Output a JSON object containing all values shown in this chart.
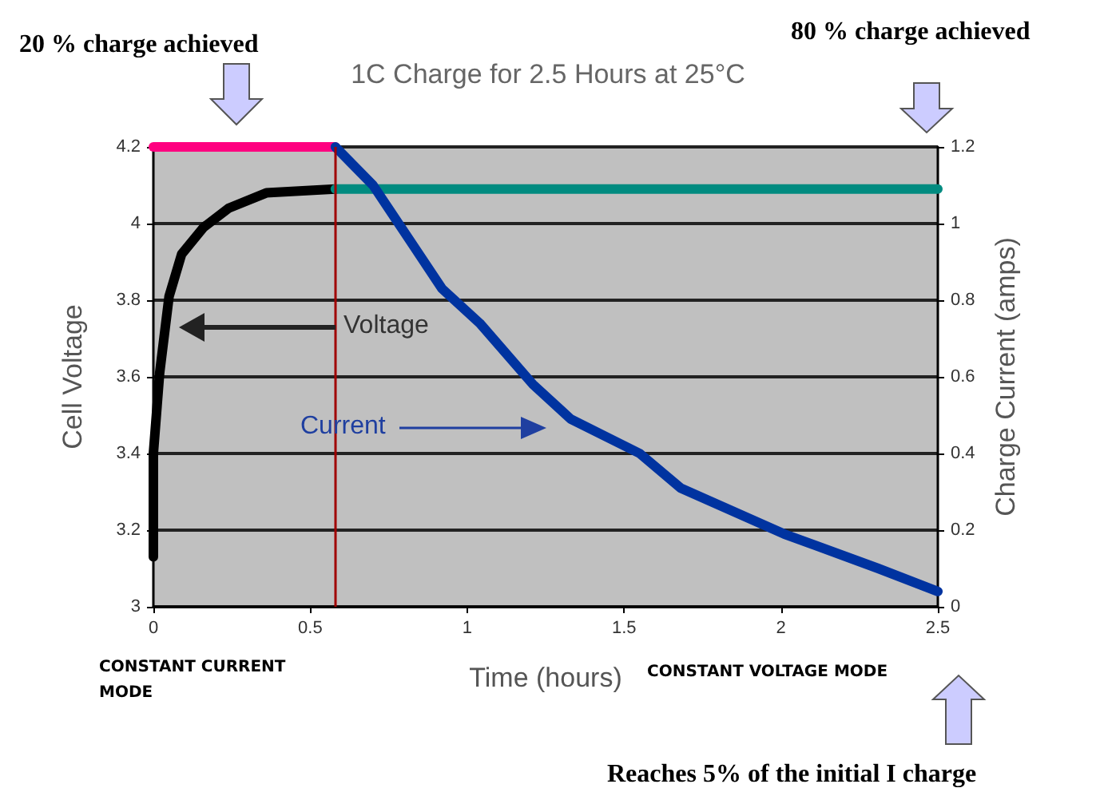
{
  "chart_data": {
    "type": "line",
    "title": "1C Charge for 2.5 Hours at 25°C",
    "xlabel": "Time (hours)",
    "ylabel": "Cell Voltage",
    "y2label": "Charge Current (amps)",
    "annotations": [
      "20 % charge achieved",
      "80 % charge achieved",
      "CONSTANT CURRENT MODE",
      "CONSTANT VOLTAGE MODE",
      "Reaches 5% of the initial I charge"
    ],
    "xlim": [
      0,
      2.5
    ],
    "xticks": [
      0,
      0.5,
      1,
      1.5,
      2,
      2.5
    ],
    "ylim": [
      3,
      4.2
    ],
    "yticks": [
      3,
      3.2,
      3.4,
      3.6,
      3.8,
      4,
      4.2
    ],
    "y2lim": [
      0,
      1.2
    ],
    "y2ticks": [
      0,
      0.2,
      0.4,
      0.6,
      0.8,
      1,
      1.2
    ],
    "grid": "y",
    "marker": "none",
    "line_style": "solid",
    "ref_lines": [
      {
        "axis": "x",
        "value": 0.58,
        "color": "#a00000"
      }
    ],
    "series": [
      {
        "name": "Voltage",
        "color": "#000000",
        "x": [
          0,
          0,
          0.02,
          0.05,
          0.09,
          0.16,
          0.24,
          0.36,
          0.58
        ],
        "values": [
          3.13,
          3.4,
          3.61,
          3.81,
          3.92,
          3.99,
          4.04,
          4.08,
          4.09
        ]
      },
      {
        "color": "#ff0080",
        "x": [
          0,
          0.58
        ],
        "values": [
          4.2,
          4.2
        ]
      },
      {
        "color": "#008b80",
        "x": [
          0.58,
          2.5
        ],
        "values": [
          4.09,
          4.09
        ]
      },
      {
        "name": "Current",
        "color": "#0033a0",
        "axis": "y2",
        "x": [
          0.58,
          0.7,
          0.92,
          1.04,
          1.21,
          1.33,
          1.55,
          1.68,
          2.01,
          2.31,
          2.5
        ],
        "values": [
          1.2,
          1.1,
          0.83,
          0.74,
          0.58,
          0.49,
          0.4,
          0.31,
          0.19,
          0.1,
          0.04
        ]
      }
    ]
  }
}
